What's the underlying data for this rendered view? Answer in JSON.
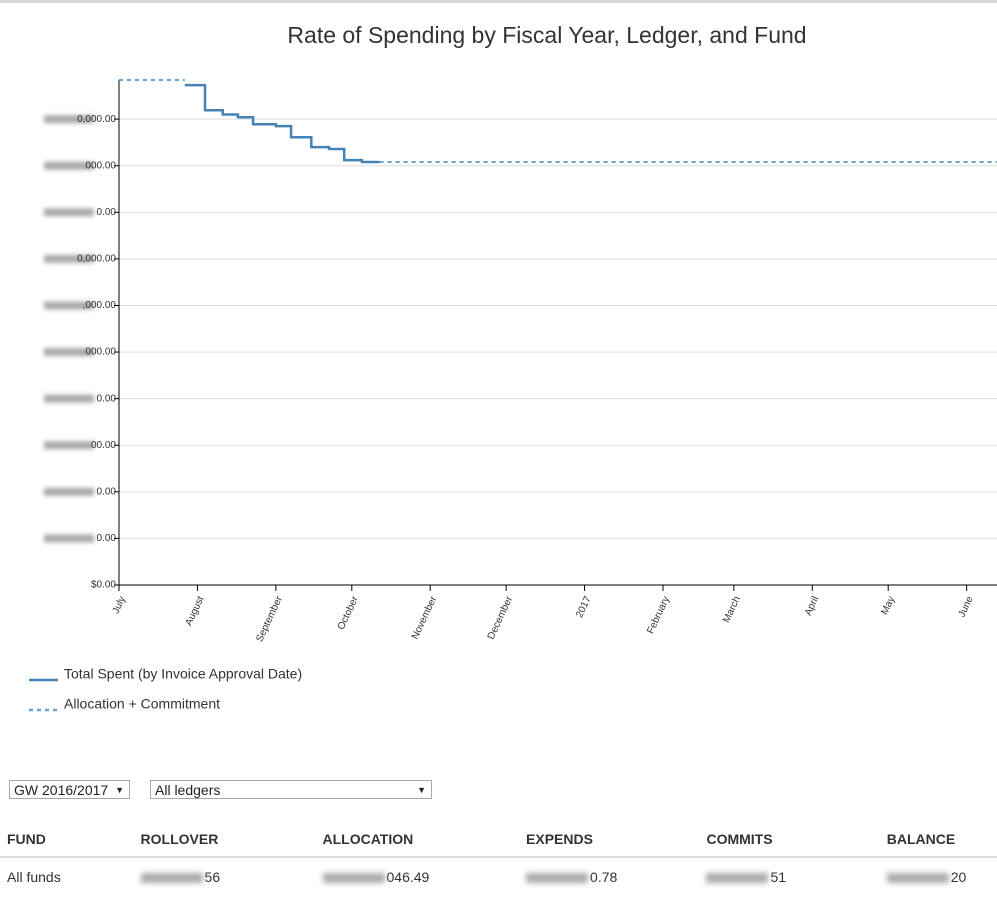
{
  "chart_data": {
    "type": "line",
    "title": "Rate of Spending by Fiscal Year, Ledger, and Fund",
    "xlim": [
      0,
      347
    ],
    "ylim": [
      0,
      10.84
    ],
    "xticks": [
      {
        "value": 0,
        "label": "July"
      },
      {
        "value": 31,
        "label": "August"
      },
      {
        "value": 62,
        "label": "September"
      },
      {
        "value": 92,
        "label": "October"
      },
      {
        "value": 123,
        "label": "November"
      },
      {
        "value": 153,
        "label": "December"
      },
      {
        "value": 184,
        "label": "2017"
      },
      {
        "value": 215,
        "label": "February"
      },
      {
        "value": 243,
        "label": "March"
      },
      {
        "value": 274,
        "label": "April"
      },
      {
        "value": 304,
        "label": "May"
      },
      {
        "value": 335,
        "label": "June"
      }
    ],
    "yticks": [
      {
        "value": 0,
        "label": "$0.00"
      },
      {
        "value": 1,
        "label": "0.00"
      },
      {
        "value": 2,
        "label": "0.00"
      },
      {
        "value": 3,
        "label": "00.00"
      },
      {
        "value": 4,
        "label": "0.00"
      },
      {
        "value": 5,
        "label": "000.00"
      },
      {
        "value": 6,
        "label": ",000.00"
      },
      {
        "value": 7,
        "label": "0,000.00"
      },
      {
        "value": 8,
        "label": "0.00"
      },
      {
        "value": 9,
        "label": "000.00"
      },
      {
        "value": 10,
        "label": "0,000.00"
      }
    ],
    "grid": true,
    "series": [
      {
        "name": "Total Spent (by Invoice Approval Date)",
        "color": "#4682b4",
        "step": true,
        "dashed": false,
        "x": [
          26,
          34,
          41,
          47,
          53,
          62,
          68,
          76,
          83,
          89,
          96,
          103
        ],
        "values": [
          10.73,
          10.19,
          10.1,
          10.04,
          9.89,
          9.85,
          9.61,
          9.4,
          9.36,
          9.12,
          9.08,
          9.08
        ]
      },
      {
        "name": "Allocation + Commitment",
        "color": "#6a9fcb",
        "step": false,
        "dashed": true,
        "x": [
          0,
          26,
          60,
          103,
          347
        ],
        "values": [
          10.84,
          10.84,
          null,
          9.08,
          9.08
        ]
      }
    ]
  },
  "controls": {
    "fiscal_year": "GW 2016/2017",
    "ledger": "All ledgers"
  },
  "table": {
    "columns": [
      "FUND",
      "ROLLOVER",
      "ALLOCATION",
      "EXPENDS",
      "COMMITS",
      "BALANCE"
    ],
    "rows": [
      [
        "All funds",
        "56",
        "046.49",
        "0.78",
        "51",
        "20"
      ]
    ]
  }
}
